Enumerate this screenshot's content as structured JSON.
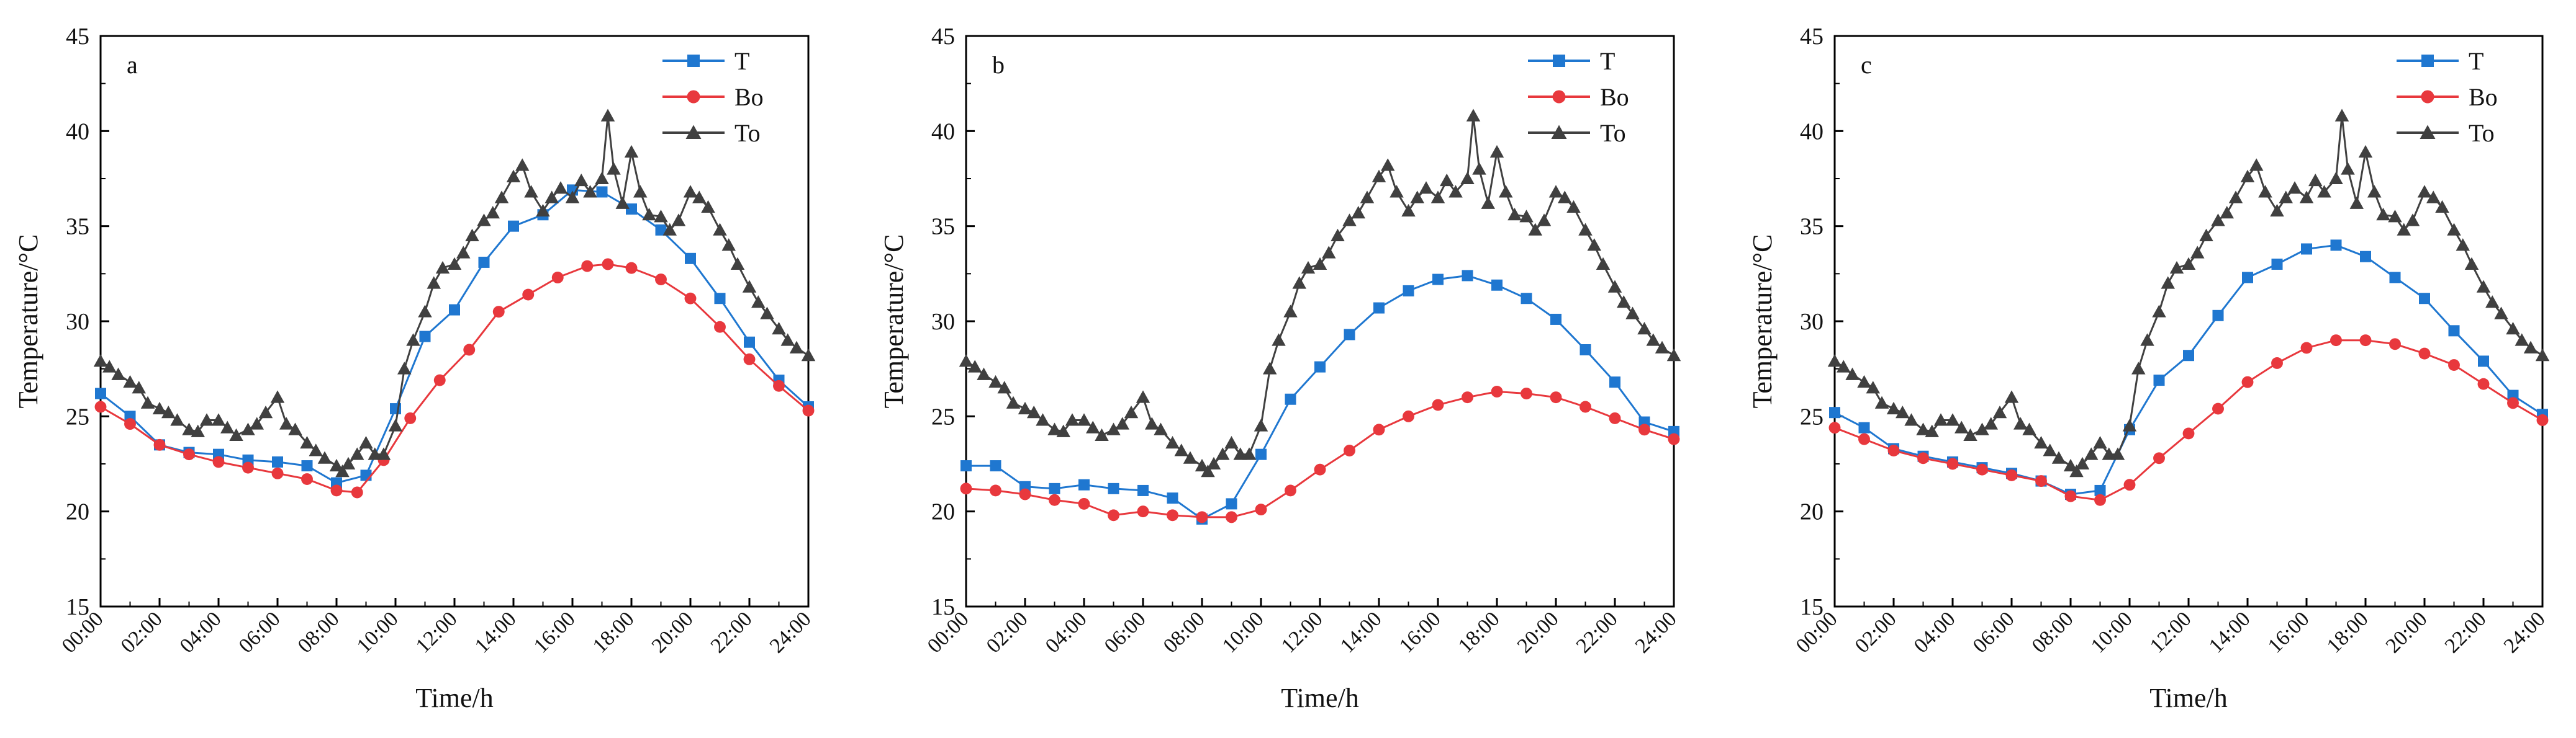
{
  "colors": {
    "T": "#1f77d0",
    "Bo": "#e8383d",
    "To": "#404040"
  },
  "chart_data": [
    {
      "type": "line",
      "panel_label": "a",
      "xlabel": "Time/h",
      "ylabel": "Temperature/°C",
      "xlim": [
        0,
        24
      ],
      "ylim": [
        15,
        45
      ],
      "xticks": [
        "00:00",
        "02:00",
        "04:00",
        "06:00",
        "08:00",
        "10:00",
        "12:00",
        "14:00",
        "16:00",
        "18:00",
        "20:00",
        "22:00",
        "24:00"
      ],
      "yticks": [
        "15",
        "20",
        "25",
        "30",
        "35",
        "40",
        "45"
      ],
      "legend_position": "top-right",
      "series": [
        {
          "name": "T",
          "marker": "square",
          "x": [
            0,
            1,
            2,
            3,
            4,
            5,
            6,
            7,
            8,
            9,
            10,
            11,
            12,
            13,
            14,
            15,
            16,
            17,
            18,
            19,
            20,
            21,
            22,
            23,
            24
          ],
          "values": [
            26.2,
            25.0,
            23.5,
            23.1,
            23.0,
            22.7,
            22.6,
            22.4,
            21.5,
            21.9,
            25.4,
            29.2,
            30.6,
            33.1,
            35.0,
            35.6,
            36.9,
            36.8,
            35.9,
            34.8,
            33.3,
            31.2,
            28.9,
            26.9,
            25.5
          ]
        },
        {
          "name": "Bo",
          "marker": "circle",
          "x": [
            0,
            1,
            2,
            3,
            4,
            5,
            6,
            7,
            8,
            8.7,
            9.6,
            10.5,
            11.5,
            12.5,
            13.5,
            14.5,
            15.5,
            16.5,
            17.2,
            18,
            19,
            20,
            21,
            22,
            23,
            24
          ],
          "values": [
            25.5,
            24.6,
            23.5,
            23.0,
            22.6,
            22.3,
            22.0,
            21.7,
            21.1,
            21.0,
            22.7,
            24.9,
            26.9,
            28.5,
            30.5,
            31.4,
            32.3,
            32.9,
            33.0,
            32.8,
            32.2,
            31.2,
            29.7,
            28.0,
            26.6,
            25.3
          ]
        },
        {
          "name": "To",
          "marker": "triangle",
          "x": [
            0,
            0.3,
            0.6,
            1,
            1.3,
            1.6,
            2,
            2.3,
            2.6,
            3,
            3.3,
            3.6,
            4,
            4.3,
            4.6,
            5,
            5.3,
            5.6,
            6,
            6.3,
            6.6,
            7,
            7.3,
            7.6,
            8,
            8.2,
            8.4,
            8.7,
            9,
            9.3,
            9.6,
            10,
            10.3,
            10.6,
            11,
            11.3,
            11.6,
            12,
            12.3,
            12.6,
            13,
            13.3,
            13.6,
            14,
            14.3,
            14.6,
            15,
            15.3,
            15.6,
            16,
            16.3,
            16.6,
            17,
            17.2,
            17.4,
            17.7,
            18,
            18.3,
            18.6,
            19,
            19.3,
            19.6,
            20,
            20.3,
            20.6,
            21,
            21.3,
            21.6,
            22,
            22.3,
            22.6,
            23,
            23.3,
            23.6,
            24
          ],
          "values": [
            27.9,
            27.6,
            27.2,
            26.8,
            26.5,
            25.7,
            25.4,
            25.2,
            24.8,
            24.3,
            24.2,
            24.8,
            24.8,
            24.4,
            24.0,
            24.3,
            24.6,
            25.2,
            26.0,
            24.6,
            24.3,
            23.6,
            23.2,
            22.8,
            22.4,
            22.1,
            22.5,
            23.0,
            23.6,
            23.0,
            23.0,
            24.5,
            27.5,
            29.0,
            30.5,
            32.0,
            32.8,
            33.0,
            33.6,
            34.5,
            35.3,
            35.7,
            36.5,
            37.6,
            38.2,
            36.8,
            35.8,
            36.5,
            37.0,
            36.5,
            37.4,
            36.8,
            37.5,
            40.8,
            38.0,
            36.2,
            38.9,
            36.8,
            35.6,
            35.5,
            34.8,
            35.3,
            36.8,
            36.5,
            36.0,
            34.8,
            34.0,
            33.0,
            31.8,
            31.0,
            30.4,
            29.6,
            29.0,
            28.6,
            28.2
          ]
        }
      ]
    },
    {
      "type": "line",
      "panel_label": "b",
      "xlabel": "Time/h",
      "ylabel": "Temperature/°C",
      "xlim": [
        0,
        24
      ],
      "ylim": [
        15,
        45
      ],
      "xticks": [
        "00:00",
        "02:00",
        "04:00",
        "06:00",
        "08:00",
        "10:00",
        "12:00",
        "14:00",
        "16:00",
        "18:00",
        "20:00",
        "22:00",
        "24:00"
      ],
      "yticks": [
        "15",
        "20",
        "25",
        "30",
        "35",
        "40",
        "45"
      ],
      "legend_position": "top-right",
      "series": [
        {
          "name": "T",
          "marker": "square",
          "x": [
            0,
            1,
            2,
            3,
            4,
            5,
            6,
            7,
            8,
            9,
            10,
            11,
            12,
            13,
            14,
            15,
            16,
            17,
            18,
            19,
            20,
            21,
            22,
            23,
            24
          ],
          "values": [
            22.4,
            22.4,
            21.3,
            21.2,
            21.4,
            21.2,
            21.1,
            20.7,
            19.6,
            20.4,
            23.0,
            25.9,
            27.6,
            29.3,
            30.7,
            31.6,
            32.2,
            32.4,
            31.9,
            31.2,
            30.1,
            28.5,
            26.8,
            24.7,
            24.2
          ]
        },
        {
          "name": "Bo",
          "marker": "circle",
          "x": [
            0,
            1,
            2,
            3,
            4,
            5,
            6,
            7,
            8,
            9,
            10,
            11,
            12,
            13,
            14,
            15,
            16,
            17,
            18,
            19,
            20,
            21,
            22,
            23,
            24
          ],
          "values": [
            21.2,
            21.1,
            20.9,
            20.6,
            20.4,
            19.8,
            20.0,
            19.8,
            19.7,
            19.7,
            20.1,
            21.1,
            22.2,
            23.2,
            24.3,
            25.0,
            25.6,
            26.0,
            26.3,
            26.2,
            26.0,
            25.5,
            24.9,
            24.3,
            23.8
          ]
        },
        {
          "name": "To",
          "marker": "triangle",
          "x": [
            0,
            0.3,
            0.6,
            1,
            1.3,
            1.6,
            2,
            2.3,
            2.6,
            3,
            3.3,
            3.6,
            4,
            4.3,
            4.6,
            5,
            5.3,
            5.6,
            6,
            6.3,
            6.6,
            7,
            7.3,
            7.6,
            8,
            8.2,
            8.4,
            8.7,
            9,
            9.3,
            9.6,
            10,
            10.3,
            10.6,
            11,
            11.3,
            11.6,
            12,
            12.3,
            12.6,
            13,
            13.3,
            13.6,
            14,
            14.3,
            14.6,
            15,
            15.3,
            15.6,
            16,
            16.3,
            16.6,
            17,
            17.2,
            17.4,
            17.7,
            18,
            18.3,
            18.6,
            19,
            19.3,
            19.6,
            20,
            20.3,
            20.6,
            21,
            21.3,
            21.6,
            22,
            22.3,
            22.6,
            23,
            23.3,
            23.6,
            24
          ],
          "values": [
            27.9,
            27.6,
            27.2,
            26.8,
            26.5,
            25.7,
            25.4,
            25.2,
            24.8,
            24.3,
            24.2,
            24.8,
            24.8,
            24.4,
            24.0,
            24.3,
            24.6,
            25.2,
            26.0,
            24.6,
            24.3,
            23.6,
            23.2,
            22.8,
            22.4,
            22.1,
            22.5,
            23.0,
            23.6,
            23.0,
            23.0,
            24.5,
            27.5,
            29.0,
            30.5,
            32.0,
            32.8,
            33.0,
            33.6,
            34.5,
            35.3,
            35.7,
            36.5,
            37.6,
            38.2,
            36.8,
            35.8,
            36.5,
            37.0,
            36.5,
            37.4,
            36.8,
            37.5,
            40.8,
            38.0,
            36.2,
            38.9,
            36.8,
            35.6,
            35.5,
            34.8,
            35.3,
            36.8,
            36.5,
            36.0,
            34.8,
            34.0,
            33.0,
            31.8,
            31.0,
            30.4,
            29.6,
            29.0,
            28.6,
            28.2
          ]
        }
      ]
    },
    {
      "type": "line",
      "panel_label": "c",
      "xlabel": "Time/h",
      "ylabel": "Temperature/°C",
      "xlim": [
        0,
        24
      ],
      "ylim": [
        15,
        45
      ],
      "xticks": [
        "00:00",
        "02:00",
        "04:00",
        "06:00",
        "08:00",
        "10:00",
        "12:00",
        "14:00",
        "16:00",
        "18:00",
        "20:00",
        "22:00",
        "24:00"
      ],
      "yticks": [
        "15",
        "20",
        "25",
        "30",
        "35",
        "40",
        "45"
      ],
      "legend_position": "top-right",
      "series": [
        {
          "name": "T",
          "marker": "square",
          "x": [
            0,
            1,
            2,
            3,
            4,
            5,
            6,
            7,
            8,
            9,
            10,
            11,
            12,
            13,
            14,
            15,
            16,
            17,
            18,
            19,
            20,
            21,
            22,
            23,
            24
          ],
          "values": [
            25.2,
            24.4,
            23.3,
            22.9,
            22.6,
            22.3,
            22.0,
            21.6,
            20.9,
            21.1,
            24.3,
            26.9,
            28.2,
            30.3,
            32.3,
            33.0,
            33.8,
            34.0,
            33.4,
            32.3,
            31.2,
            29.5,
            27.9,
            26.1,
            25.1
          ]
        },
        {
          "name": "Bo",
          "marker": "circle",
          "x": [
            0,
            1,
            2,
            3,
            4,
            5,
            6,
            7,
            8,
            9,
            10,
            11,
            12,
            13,
            14,
            15,
            16,
            17,
            18,
            19,
            20,
            21,
            22,
            23,
            24
          ],
          "values": [
            24.4,
            23.8,
            23.2,
            22.8,
            22.5,
            22.2,
            21.9,
            21.6,
            20.8,
            20.6,
            21.4,
            22.8,
            24.1,
            25.4,
            26.8,
            27.8,
            28.6,
            29.0,
            29.0,
            28.8,
            28.3,
            27.7,
            26.7,
            25.7,
            24.8
          ]
        },
        {
          "name": "To",
          "marker": "triangle",
          "x": [
            0,
            0.3,
            0.6,
            1,
            1.3,
            1.6,
            2,
            2.3,
            2.6,
            3,
            3.3,
            3.6,
            4,
            4.3,
            4.6,
            5,
            5.3,
            5.6,
            6,
            6.3,
            6.6,
            7,
            7.3,
            7.6,
            8,
            8.2,
            8.4,
            8.7,
            9,
            9.3,
            9.6,
            10,
            10.3,
            10.6,
            11,
            11.3,
            11.6,
            12,
            12.3,
            12.6,
            13,
            13.3,
            13.6,
            14,
            14.3,
            14.6,
            15,
            15.3,
            15.6,
            16,
            16.3,
            16.6,
            17,
            17.2,
            17.4,
            17.7,
            18,
            18.3,
            18.6,
            19,
            19.3,
            19.6,
            20,
            20.3,
            20.6,
            21,
            21.3,
            21.6,
            22,
            22.3,
            22.6,
            23,
            23.3,
            23.6,
            24
          ],
          "values": [
            27.9,
            27.6,
            27.2,
            26.8,
            26.5,
            25.7,
            25.4,
            25.2,
            24.8,
            24.3,
            24.2,
            24.8,
            24.8,
            24.4,
            24.0,
            24.3,
            24.6,
            25.2,
            26.0,
            24.6,
            24.3,
            23.6,
            23.2,
            22.8,
            22.4,
            22.1,
            22.5,
            23.0,
            23.6,
            23.0,
            23.0,
            24.5,
            27.5,
            29.0,
            30.5,
            32.0,
            32.8,
            33.0,
            33.6,
            34.5,
            35.3,
            35.7,
            36.5,
            37.6,
            38.2,
            36.8,
            35.8,
            36.5,
            37.0,
            36.5,
            37.4,
            36.8,
            37.5,
            40.8,
            38.0,
            36.2,
            38.9,
            36.8,
            35.6,
            35.5,
            34.8,
            35.3,
            36.8,
            36.5,
            36.0,
            34.8,
            34.0,
            33.0,
            31.8,
            31.0,
            30.4,
            29.6,
            29.0,
            28.6,
            28.2
          ]
        }
      ]
    }
  ]
}
